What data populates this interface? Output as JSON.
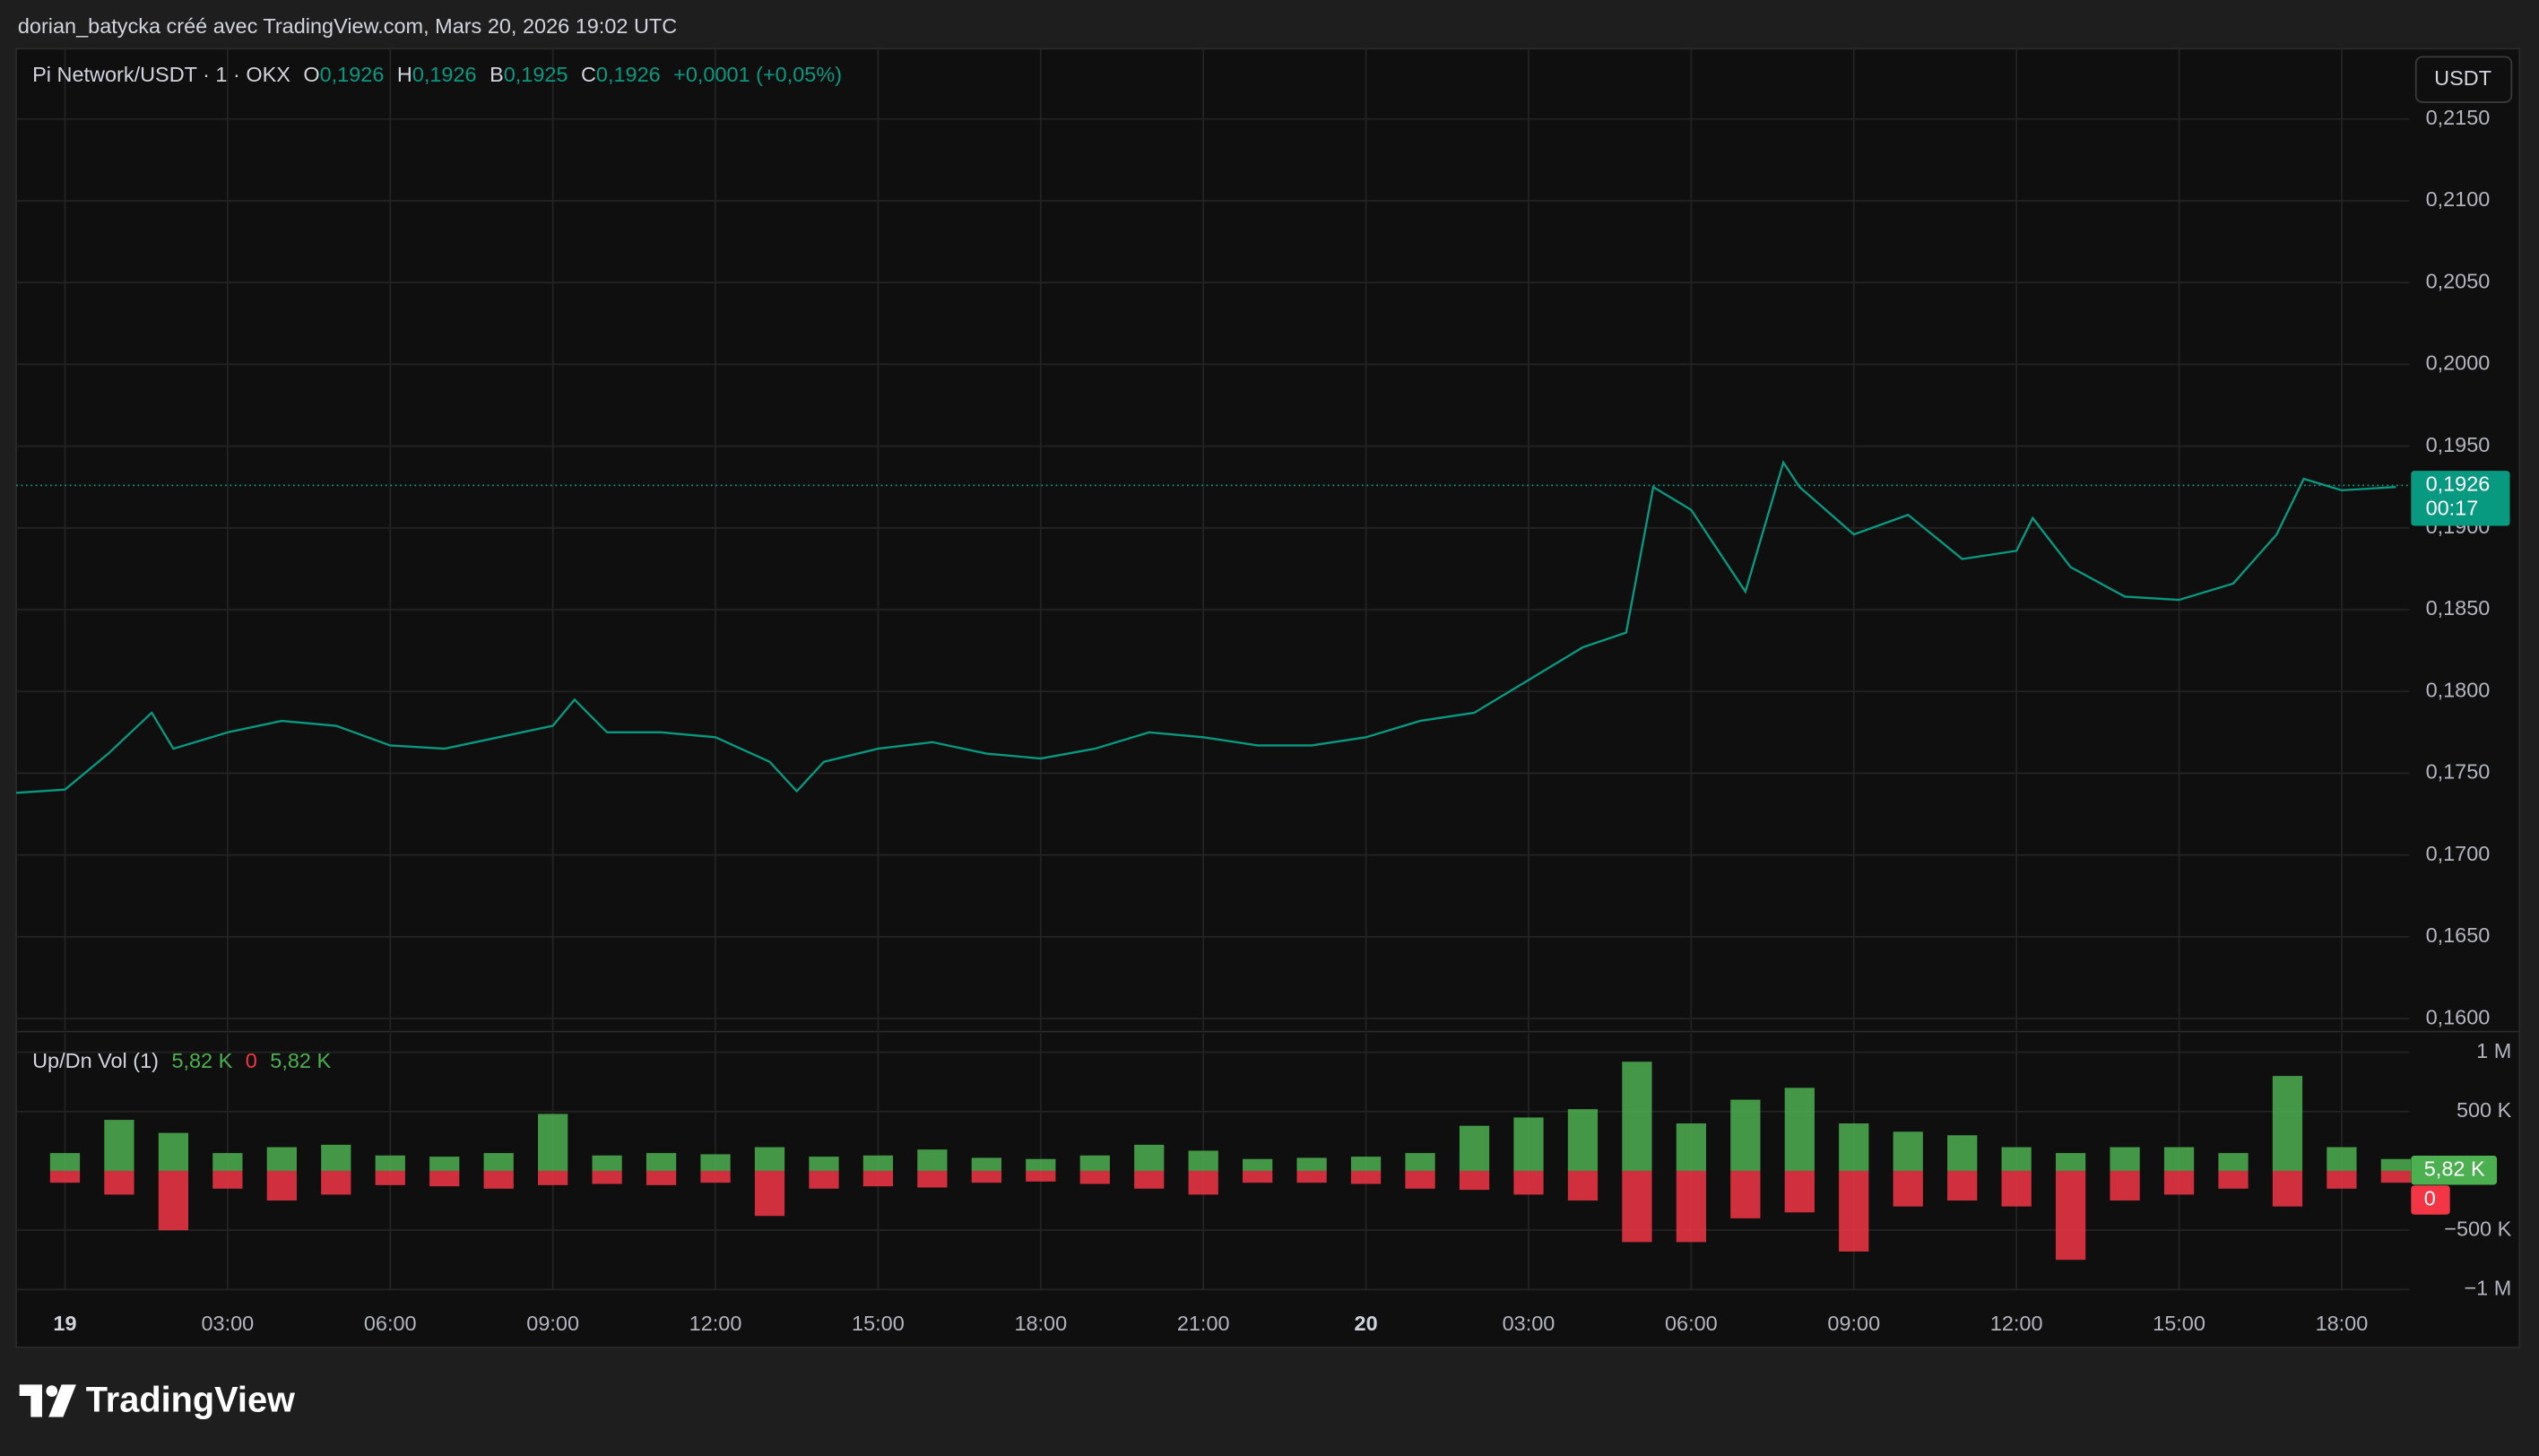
{
  "header": {
    "title": "dorian_batycka créé avec TradingView.com, Mars 20, 2026 19:02 UTC",
    "symbol": "Pi Network/USDT · 1 · OKX",
    "ohlc": [
      {
        "key": "O",
        "value": "0,1926"
      },
      {
        "key": "H",
        "value": "0,1926"
      },
      {
        "key": "B",
        "value": "0,1925"
      },
      {
        "key": "C",
        "value": "0,1926"
      }
    ],
    "change": "+0,0001 (+0,05%)",
    "currency": "USDT"
  },
  "footer": {
    "brand": "TradingView"
  },
  "chart_data": [
    {
      "type": "line",
      "x": [
        -0.9,
        0,
        0.8,
        1.6,
        2,
        3,
        4,
        5,
        6,
        7,
        8,
        9,
        9.4,
        10,
        11,
        12,
        13,
        13.5,
        14,
        15,
        16,
        17,
        18,
        19,
        20,
        21,
        22,
        23,
        24,
        25,
        26,
        27,
        28,
        28.8,
        29.3,
        30,
        31,
        31.7,
        32,
        33,
        34,
        35,
        36,
        36.3,
        37,
        38,
        39,
        40,
        40.8,
        41.3,
        42,
        43
      ],
      "series": [
        {
          "name": "Pi Network/USDT",
          "color": "#089981",
          "values": [
            0.1738,
            0.174,
            0.1762,
            0.1787,
            0.1765,
            0.1775,
            0.1782,
            0.1779,
            0.1767,
            0.1765,
            0.1772,
            0.1779,
            0.1795,
            0.1775,
            0.1775,
            0.1772,
            0.1757,
            0.1739,
            0.1757,
            0.1765,
            0.1769,
            0.1762,
            0.1759,
            0.1765,
            0.1775,
            0.1772,
            0.1767,
            0.1767,
            0.1772,
            0.1782,
            0.1787,
            0.1807,
            0.1827,
            0.1836,
            0.1925,
            0.1911,
            0.1861,
            0.194,
            0.1925,
            0.1896,
            0.1908,
            0.1881,
            0.1886,
            0.1906,
            0.1876,
            0.1858,
            0.1856,
            0.1866,
            0.1896,
            0.193,
            0.1923,
            0.1925
          ]
        }
      ],
      "last": {
        "value": 0.1926,
        "label": "0,1926"
      },
      "countdown": "00:17",
      "xlim": [
        -0.9,
        43.25
      ],
      "xticks": [
        {
          "value": 0,
          "label": "19"
        },
        {
          "value": 3,
          "label": "03:00"
        },
        {
          "value": 6,
          "label": "06:00"
        },
        {
          "value": 9,
          "label": "09:00"
        },
        {
          "value": 12,
          "label": "12:00"
        },
        {
          "value": 15,
          "label": "15:00"
        },
        {
          "value": 18,
          "label": "18:00"
        },
        {
          "value": 21,
          "label": "21:00"
        },
        {
          "value": 24,
          "label": "20"
        },
        {
          "value": 27,
          "label": "03:00"
        },
        {
          "value": 30,
          "label": "06:00"
        },
        {
          "value": 33,
          "label": "09:00"
        },
        {
          "value": 36,
          "label": "12:00"
        },
        {
          "value": 39,
          "label": "15:00"
        },
        {
          "value": 42,
          "label": "18:00"
        }
      ],
      "ylim": [
        0.1593,
        0.2193
      ],
      "yticks": [
        {
          "value": 0.16,
          "label": "0,1600"
        },
        {
          "value": 0.165,
          "label": "0,1650"
        },
        {
          "value": 0.17,
          "label": "0,1700"
        },
        {
          "value": 0.175,
          "label": "0,1750"
        },
        {
          "value": 0.18,
          "label": "0,1800"
        },
        {
          "value": 0.185,
          "label": "0,1850"
        },
        {
          "value": 0.19,
          "label": "0,1900"
        },
        {
          "value": 0.195,
          "label": "0,1950"
        },
        {
          "value": 0.2,
          "label": "0,2000"
        },
        {
          "value": 0.205,
          "label": "0,2050"
        },
        {
          "value": 0.21,
          "label": "0,2100"
        },
        {
          "value": 0.215,
          "label": "0,2150"
        }
      ],
      "grid": true
    },
    {
      "type": "bar",
      "title": "Up/Dn Vol (1)",
      "legend_values": [
        {
          "value": 5820,
          "label": "5,82 K"
        },
        0,
        {
          "value": 5820,
          "label": "5,82 K"
        }
      ],
      "x": [
        0,
        1,
        2,
        3,
        4,
        5,
        6,
        7,
        8,
        9,
        10,
        11,
        12,
        13,
        14,
        15,
        16,
        17,
        18,
        19,
        20,
        21,
        22,
        23,
        24,
        25,
        26,
        27,
        28,
        29,
        30,
        31,
        32,
        33,
        34,
        35,
        36,
        37,
        38,
        39,
        40,
        41,
        42,
        43
      ],
      "series": [
        {
          "name": "Up",
          "color": "#4caf50",
          "values": [
            150000,
            430000,
            320000,
            150000,
            200000,
            220000,
            130000,
            120000,
            150000,
            480000,
            130000,
            150000,
            140000,
            200000,
            120000,
            130000,
            180000,
            110000,
            100000,
            130000,
            220000,
            170000,
            100000,
            110000,
            120000,
            150000,
            380000,
            450000,
            520000,
            920000,
            400000,
            600000,
            700000,
            400000,
            330000,
            300000,
            200000,
            150000,
            200000,
            200000,
            150000,
            800000,
            200000,
            100000
          ]
        },
        {
          "name": "Dn",
          "color": "#f23645",
          "values": [
            -100000,
            -200000,
            -500000,
            -150000,
            -250000,
            -200000,
            -120000,
            -130000,
            -150000,
            -120000,
            -110000,
            -120000,
            -100000,
            -380000,
            -150000,
            -130000,
            -140000,
            -100000,
            -90000,
            -110000,
            -150000,
            -200000,
            -100000,
            -100000,
            -110000,
            -150000,
            -160000,
            -200000,
            -250000,
            -600000,
            -600000,
            -400000,
            -350000,
            -680000,
            -300000,
            -250000,
            -300000,
            -750000,
            -250000,
            -200000,
            -150000,
            -300000,
            -150000,
            -100000
          ]
        }
      ],
      "last_up": {
        "value": 5820,
        "label": "5,82 K"
      },
      "last_down": 0,
      "ylim": [
        -1010000,
        1160000
      ],
      "yticks": [
        {
          "value": -1000000,
          "label": "−1 M"
        },
        {
          "value": -500000,
          "label": "−500 K"
        },
        {
          "value": 500000,
          "label": "500 K"
        },
        {
          "value": 1000000,
          "label": "1 M"
        }
      ],
      "grid": true
    }
  ]
}
